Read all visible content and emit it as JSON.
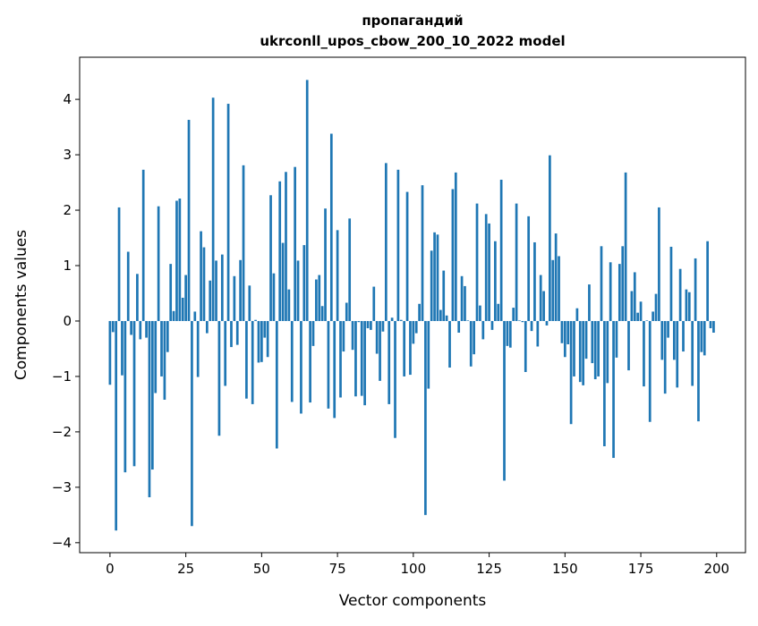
{
  "chart_data": {
    "type": "bar",
    "title": [
      "пропагандий",
      "ukrconll_upos_cbow_200_10_2022 model"
    ],
    "xlabel": "Vector components",
    "ylabel": "Components values",
    "xlim": [
      -10,
      209.5
    ],
    "ylim": [
      -4.18,
      4.76
    ],
    "xticks": [
      0,
      25,
      50,
      75,
      100,
      125,
      150,
      175,
      200
    ],
    "yticks": [
      -4,
      -3,
      -2,
      -1,
      0,
      1,
      2,
      3,
      4
    ],
    "grid": false,
    "bar_color": "#1f77b4",
    "values": [
      -1.15,
      -0.2,
      -3.78,
      2.05,
      -0.98,
      -2.73,
      1.25,
      -0.25,
      -2.62,
      0.85,
      -0.33,
      2.73,
      -0.3,
      -3.18,
      -2.68,
      -1.3,
      2.07,
      -1.0,
      -1.42,
      -0.56,
      1.03,
      0.18,
      2.17,
      2.21,
      0.42,
      0.83,
      3.63,
      -3.7,
      0.17,
      -1.01,
      1.62,
      1.33,
      -0.22,
      0.73,
      4.03,
      1.09,
      -2.07,
      1.2,
      -1.17,
      3.92,
      -0.47,
      0.81,
      -0.43,
      1.1,
      2.81,
      -1.4,
      0.64,
      -1.5,
      0.02,
      -0.75,
      -0.74,
      -0.3,
      -0.65,
      2.27,
      0.86,
      -2.3,
      2.52,
      1.41,
      2.69,
      0.57,
      -1.46,
      2.78,
      1.09,
      -1.67,
      1.37,
      4.35,
      -1.47,
      -0.45,
      0.75,
      0.83,
      0.27,
      2.03,
      -1.58,
      3.38,
      -1.75,
      1.64,
      -1.38,
      -0.55,
      0.33,
      1.85,
      -0.52,
      -1.36,
      -0.02,
      -1.35,
      -1.52,
      -0.13,
      -0.16,
      0.62,
      -0.59,
      -1.08,
      -0.19,
      2.85,
      -1.5,
      0.06,
      -2.11,
      2.73,
      0.02,
      -1.0,
      2.33,
      -0.97,
      -0.41,
      -0.22,
      0.31,
      2.45,
      -3.5,
      -1.22,
      1.27,
      1.6,
      1.56,
      0.2,
      0.91,
      0.1,
      -0.84,
      2.38,
      2.68,
      -0.21,
      0.81,
      0.63,
      0.01,
      -0.82,
      -0.6,
      2.12,
      0.28,
      -0.33,
      1.93,
      1.76,
      -0.16,
      1.44,
      0.31,
      2.55,
      -2.88,
      -0.45,
      -0.48,
      0.24,
      2.12,
      0.01,
      -0.02,
      -0.92,
      1.89,
      -0.18,
      1.42,
      -0.46,
      0.83,
      0.54,
      -0.08,
      2.99,
      1.1,
      1.58,
      1.17,
      -0.4,
      -0.65,
      -0.42,
      -1.86,
      -1.0,
      0.23,
      -1.1,
      -1.16,
      -0.68,
      0.66,
      -0.76,
      -1.05,
      -1.0,
      1.35,
      -2.26,
      -1.12,
      1.06,
      -2.47,
      -0.66,
      1.03,
      1.35,
      2.68,
      -0.89,
      0.54,
      0.88,
      0.15,
      0.35,
      -1.18,
      0.01,
      -1.82,
      0.17,
      0.49,
      2.05,
      -0.7,
      -1.31,
      -0.3,
      1.34,
      -0.7,
      -1.2,
      0.94,
      -0.55,
      0.57,
      0.52,
      -1.17,
      1.13,
      -1.81,
      -0.56,
      -0.62,
      1.44,
      -0.13,
      -0.21
    ]
  }
}
